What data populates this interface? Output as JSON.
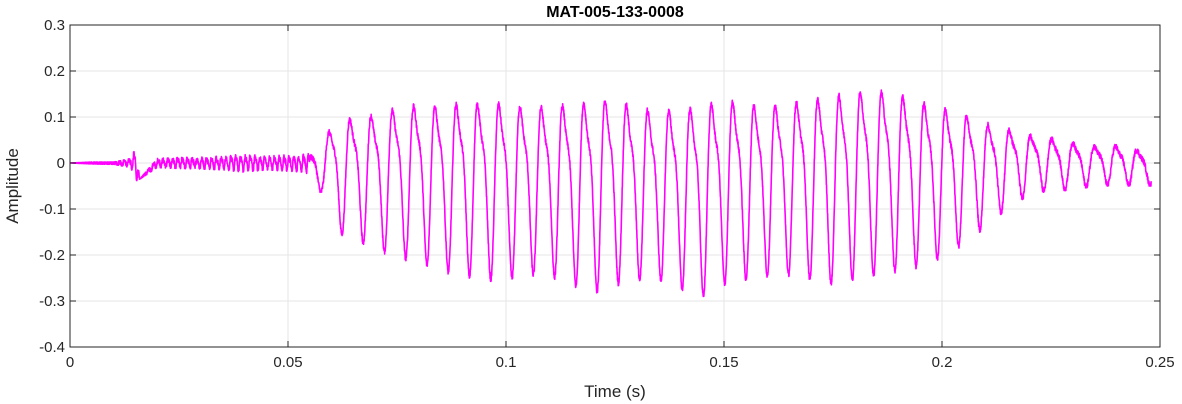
{
  "chart_data": {
    "type": "line",
    "title": "MAT-005-133-0008",
    "xlabel": "Time (s)",
    "ylabel": "Amplitude",
    "xlim": [
      0,
      0.25
    ],
    "ylim": [
      -0.4,
      0.3
    ],
    "grid": true,
    "x_ticks": [
      0,
      0.05,
      0.1,
      0.15,
      0.2,
      0.25
    ],
    "x_tick_labels": [
      "0",
      "0.05",
      "0.1",
      "0.15",
      "0.2",
      "0.25"
    ],
    "y_ticks": [
      -0.4,
      -0.3,
      -0.2,
      -0.1,
      0,
      0.1,
      0.2,
      0.3
    ],
    "y_tick_labels": [
      "-0.4",
      "-0.3",
      "-0.2",
      "-0.1",
      "0",
      "0.1",
      "0.2",
      "0.3"
    ],
    "line_color": "#ff00ff",
    "series": [
      {
        "x": [
          0,
          0.005,
          0.01,
          0.014,
          0.015,
          0.016,
          0.02,
          0.025,
          0.03,
          0.035,
          0.04,
          0.045,
          0.05,
          0.054,
          0.056,
          0.058,
          0.06,
          0.065,
          0.07,
          0.075,
          0.08,
          0.085,
          0.09,
          0.095,
          0.1,
          0.105,
          0.11,
          0.115,
          0.12,
          0.125,
          0.13,
          0.135,
          0.14,
          0.145,
          0.15,
          0.155,
          0.16,
          0.165,
          0.17,
          0.175,
          0.18,
          0.185,
          0.19,
          0.195,
          0.2,
          0.205,
          0.21,
          0.215,
          0.22,
          0.225,
          0.23,
          0.235,
          0.24,
          0.245,
          0.248
        ],
        "y": [
          0,
          0.002,
          0.002,
          0.01,
          0.04,
          -0.035,
          0.01,
          0.012,
          0.013,
          0.015,
          0.02,
          0.015,
          0.018,
          0.02,
          0.04,
          0.05,
          0.12,
          0.14,
          0.15,
          0.17,
          0.18,
          0.18,
          0.19,
          0.19,
          0.19,
          0.18,
          0.18,
          0.19,
          0.2,
          0.2,
          0.18,
          0.17,
          0.18,
          0.19,
          0.2,
          0.19,
          0.18,
          0.19,
          0.2,
          0.21,
          0.22,
          0.22,
          0.21,
          0.19,
          0.17,
          0.15,
          0.12,
          0.1,
          0.08,
          0.07,
          0.06,
          0.05,
          0.05,
          0.04,
          0.035
        ],
        "y_lower": [
          0,
          -0.002,
          -0.003,
          -0.01,
          -0.04,
          -0.035,
          -0.01,
          -0.012,
          -0.013,
          -0.015,
          -0.02,
          -0.015,
          -0.018,
          -0.02,
          -0.05,
          -0.07,
          -0.15,
          -0.17,
          -0.19,
          -0.21,
          -0.22,
          -0.24,
          -0.25,
          -0.26,
          -0.26,
          -0.25,
          -0.25,
          -0.27,
          -0.29,
          -0.27,
          -0.26,
          -0.26,
          -0.28,
          -0.3,
          -0.27,
          -0.26,
          -0.25,
          -0.25,
          -0.26,
          -0.27,
          -0.26,
          -0.25,
          -0.24,
          -0.23,
          -0.21,
          -0.18,
          -0.14,
          -0.1,
          -0.07,
          -0.06,
          -0.06,
          -0.05,
          -0.05,
          -0.05,
          -0.05
        ]
      }
    ]
  }
}
